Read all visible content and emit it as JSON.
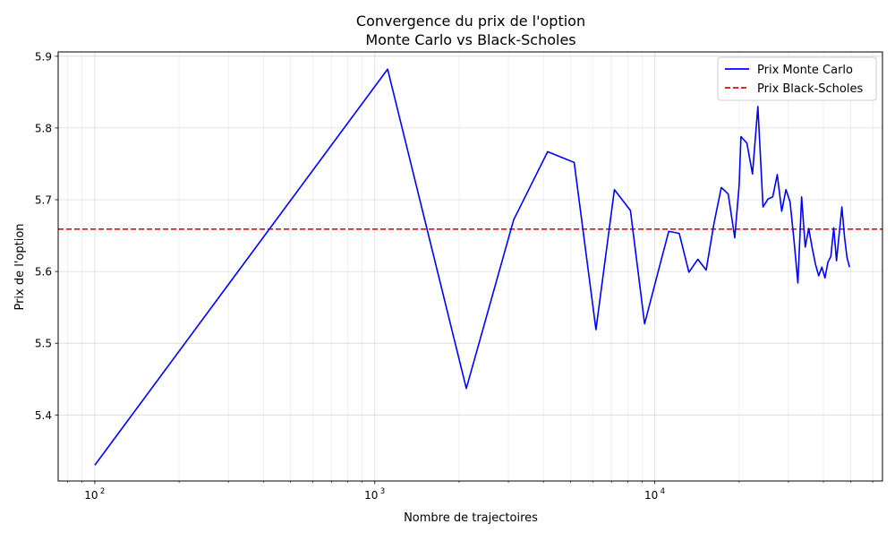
{
  "chart_data": {
    "type": "line",
    "title": "Convergence du prix de l'option",
    "subtitle": "Monte Carlo vs Black-Scholes",
    "xlabel": "Nombre de trajectoires",
    "ylabel": "Prix de l'option",
    "xscale": "log",
    "xlim": [
      74,
      65000
    ],
    "ylim": [
      5.308,
      5.906
    ],
    "xticks": [
      {
        "value": 100,
        "base": "10",
        "exp": "2"
      },
      {
        "value": 1000,
        "base": "10",
        "exp": "3"
      },
      {
        "value": 10000,
        "base": "10",
        "exp": "4"
      }
    ],
    "yticks": [
      {
        "value": 5.4,
        "label": "5.4"
      },
      {
        "value": 5.5,
        "label": "5.5"
      },
      {
        "value": 5.6,
        "label": "5.6"
      },
      {
        "value": 5.7,
        "label": "5.7"
      },
      {
        "value": 5.8,
        "label": "5.8"
      },
      {
        "value": 5.9,
        "label": "5.9"
      }
    ],
    "grid": true,
    "legend_position": "upper right",
    "series": [
      {
        "name": "Prix Monte Carlo",
        "color": "#0000ff",
        "style": "solid",
        "x": [
          100,
          1111,
          2122,
          3132,
          4142,
          5152,
          6162,
          7172,
          8182,
          9192,
          10202,
          11212,
          12222,
          13232,
          14242,
          15252,
          16262,
          17272,
          18282,
          19292,
          20000,
          20302,
          21312,
          22322,
          23332,
          24342,
          25352,
          26362,
          27372,
          28382,
          29392,
          30402,
          31412,
          32422,
          33432,
          34442,
          35452,
          36462,
          37472,
          38482,
          39492,
          40502,
          41512,
          42522,
          43532,
          44542,
          45552,
          46562,
          47572,
          48582,
          49592
        ],
        "y": [
          5.33,
          5.882,
          5.437,
          5.672,
          5.767,
          5.752,
          5.519,
          5.714,
          5.685,
          5.527,
          5.595,
          5.656,
          5.653,
          5.599,
          5.617,
          5.602,
          5.667,
          5.717,
          5.708,
          5.647,
          5.72,
          5.788,
          5.779,
          5.736,
          5.83,
          5.69,
          5.701,
          5.704,
          5.735,
          5.684,
          5.714,
          5.697,
          5.643,
          5.584,
          5.704,
          5.634,
          5.66,
          5.633,
          5.61,
          5.594,
          5.606,
          5.591,
          5.613,
          5.621,
          5.661,
          5.615,
          5.653,
          5.69,
          5.648,
          5.619,
          5.606
        ]
      },
      {
        "name": "Prix Black-Scholes",
        "color": "#ff0000",
        "style": "dashed",
        "y_constant": 5.659
      }
    ]
  }
}
